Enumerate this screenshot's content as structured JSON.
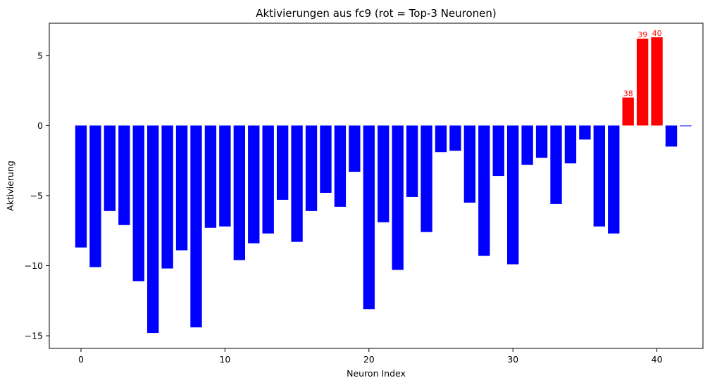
{
  "chart_data": {
    "type": "bar",
    "title": "Aktivierungen aus fc9 (rot = Top-3 Neuronen)",
    "xlabel": "Neuron Index",
    "ylabel": "Aktivierung",
    "xlim": [
      -2.2,
      43.2
    ],
    "ylim": [
      -15.9,
      7.3
    ],
    "x_ticks": [
      0,
      10,
      20,
      30,
      40
    ],
    "y_ticks": [
      -15,
      -10,
      -5,
      0,
      5
    ],
    "grid": false,
    "colors": {
      "default": "#0000ff",
      "top": "#ff0000"
    },
    "top_indices": [
      38,
      39,
      40
    ],
    "x": [
      0,
      1,
      2,
      3,
      4,
      5,
      6,
      7,
      8,
      9,
      10,
      11,
      12,
      13,
      14,
      15,
      16,
      17,
      18,
      19,
      20,
      21,
      22,
      23,
      24,
      25,
      26,
      27,
      28,
      29,
      30,
      31,
      32,
      33,
      34,
      35,
      36,
      37,
      38,
      39,
      40,
      41,
      42
    ],
    "values": [
      -8.7,
      -10.1,
      -6.1,
      -7.1,
      -11.1,
      -14.8,
      -10.2,
      -8.9,
      -14.4,
      -7.3,
      -7.2,
      -9.6,
      -8.4,
      -7.7,
      -5.3,
      -8.3,
      -6.1,
      -4.8,
      -5.8,
      -3.3,
      -13.1,
      -6.9,
      -10.3,
      -5.1,
      -7.6,
      -1.9,
      -1.8,
      -5.5,
      -9.3,
      -3.6,
      -9.9,
      -2.8,
      -2.3,
      -5.6,
      -2.7,
      -1.0,
      -7.2,
      -7.7,
      2.0,
      6.2,
      6.3,
      -1.5,
      -0.05
    ]
  }
}
